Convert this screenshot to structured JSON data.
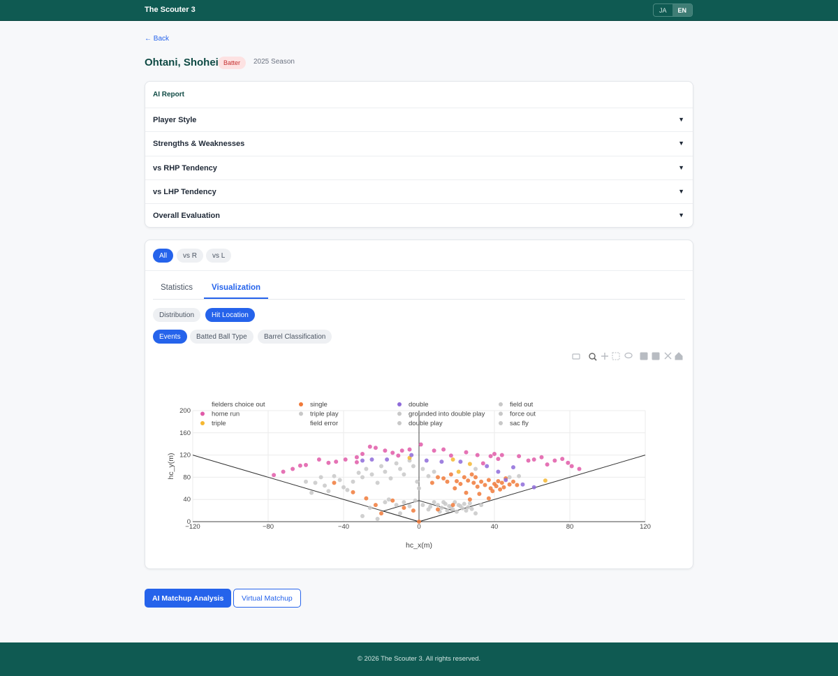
{
  "header": {
    "brand": "The Scouter 3",
    "languages": [
      "JA",
      "EN"
    ]
  },
  "back": "← Back",
  "player": {
    "name": "Ohtani, Shohei",
    "role": "Batter",
    "season": "2025 Season"
  },
  "ai_report": {
    "title": "AI Report",
    "sections": [
      "Player Style",
      "Strengths & Weaknesses",
      "vs RHP Tendency",
      "vs LHP Tendency",
      "Overall Evaluation"
    ]
  },
  "filters": [
    "All",
    "vs R",
    "vs L"
  ],
  "tabs": [
    "Statistics",
    "Visualization"
  ],
  "sub_tabs": [
    "Distribution",
    "Hit Location"
  ],
  "modes": [
    "Events",
    "Batted Ball Type",
    "Barrel Classification"
  ],
  "chart_data": {
    "type": "scatter",
    "x_label": "hc_x(m)",
    "y_label": "hc_y(m)",
    "xlim": [
      -120,
      120
    ],
    "ylim": [
      0,
      200
    ],
    "xticks": [
      {
        "value": -120,
        "label": "−120"
      },
      {
        "value": -80,
        "label": "−80"
      },
      {
        "value": -40,
        "label": "−40"
      },
      0,
      40,
      80,
      120
    ],
    "yticks": [
      0,
      40,
      80,
      120,
      160,
      200
    ],
    "grid": true,
    "series": [
      {
        "name": "fielders choice out",
        "x": [],
        "values": []
      },
      {
        "name": "home run",
        "color": "#e05aa8",
        "x": [
          -77,
          -72,
          -67,
          -63,
          -60,
          -53,
          -48,
          -44,
          -39,
          -33,
          -30,
          -26,
          -23,
          -18,
          -14,
          -9,
          -5,
          1,
          8,
          13,
          17,
          25,
          31,
          38,
          40,
          42,
          44,
          53,
          58,
          61,
          65,
          68,
          72,
          76,
          79,
          81,
          85,
          -33,
          -11,
          34
        ],
        "values": [
          84,
          90,
          95,
          101,
          102,
          112,
          106,
          108,
          112,
          116,
          122,
          135,
          133,
          128,
          124,
          128,
          130,
          139,
          128,
          130,
          119,
          125,
          120,
          118,
          122,
          113,
          120,
          118,
          110,
          112,
          116,
          103,
          110,
          113,
          106,
          100,
          95,
          107,
          119,
          105
        ]
      },
      {
        "name": "triple",
        "color": "#f5b731",
        "x": [
          -5,
          18,
          27,
          67,
          21
        ],
        "values": [
          115,
          112,
          104,
          74,
          90
        ]
      },
      {
        "name": "single",
        "color": "#f07a3a",
        "x": [
          -35,
          -28,
          -23,
          -14,
          -8,
          -3,
          0,
          7,
          10,
          13,
          15,
          17,
          19,
          20,
          22,
          24,
          25,
          26,
          28,
          29,
          30,
          31,
          33,
          35,
          37,
          38,
          39,
          40,
          41,
          42,
          43,
          44,
          45,
          46,
          48,
          50,
          52,
          32,
          27,
          18,
          10,
          -45,
          -20,
          37
        ],
        "values": [
          53,
          42,
          30,
          38,
          25,
          20,
          0,
          70,
          80,
          78,
          72,
          85,
          60,
          73,
          68,
          80,
          52,
          74,
          85,
          70,
          80,
          63,
          72,
          66,
          75,
          60,
          55,
          68,
          64,
          73,
          58,
          70,
          62,
          78,
          67,
          72,
          66,
          50,
          40,
          30,
          22,
          70,
          15,
          42
        ]
      },
      {
        "name": "triple play",
        "color": "#c8c8c8",
        "x": [
          11
        ],
        "values": [
          18
        ]
      },
      {
        "name": "field error",
        "x": [],
        "values": []
      },
      {
        "name": "double",
        "color": "#8e6bd9",
        "x": [
          -30,
          -25,
          -17,
          -4,
          4,
          12,
          22,
          36,
          50,
          55,
          61,
          42,
          46
        ],
        "values": [
          110,
          112,
          112,
          120,
          110,
          108,
          108,
          100,
          98,
          67,
          62,
          90,
          75
        ]
      },
      {
        "name": "grounded into double play",
        "color": "#c8c8c8",
        "x": [
          13,
          17,
          21,
          -10
        ],
        "values": [
          35,
          26,
          30,
          15
        ]
      },
      {
        "name": "double play",
        "color": "#c8c8c8",
        "x": [
          -26
        ],
        "values": [
          25
        ]
      },
      {
        "name": "field out",
        "color": "#c8c8c8",
        "x": [
          -60,
          -55,
          -50,
          -45,
          -42,
          -40,
          -38,
          -35,
          -32,
          -30,
          -28,
          -25,
          -22,
          -20,
          -18,
          -15,
          -12,
          -10,
          -8,
          -5,
          -3,
          -1,
          2,
          5,
          8,
          -16,
          -12,
          -8,
          -5,
          -2,
          2,
          5,
          8,
          10,
          12,
          14,
          15,
          16,
          18,
          19,
          20,
          22,
          23,
          24,
          25,
          26,
          28,
          30,
          -30,
          -22,
          0,
          -48,
          -57,
          33,
          48,
          53
        ],
        "values": [
          72,
          70,
          65,
          82,
          75,
          62,
          57,
          72,
          88,
          80,
          95,
          85,
          70,
          100,
          90,
          78,
          105,
          95,
          85,
          110,
          100,
          72,
          95,
          82,
          90,
          40,
          30,
          35,
          28,
          38,
          30,
          22,
          35,
          30,
          25,
          32,
          20,
          28,
          22,
          35,
          18,
          28,
          24,
          32,
          20,
          26,
          23,
          15,
          10,
          5,
          60,
          55,
          52,
          30,
          80,
          82
        ]
      },
      {
        "name": "force out",
        "color": "#c8c8c8",
        "x": [
          -18,
          6,
          27
        ],
        "values": [
          35,
          27,
          33
        ]
      },
      {
        "name": "sac fly",
        "color": "#c8c8c8",
        "x": [
          -52,
          30
        ],
        "values": [
          80,
          95
        ]
      }
    ]
  },
  "actions": [
    "AI Matchup Analysis",
    "Virtual Matchup"
  ],
  "footer": "© 2026 The Scouter 3. All rights reserved."
}
